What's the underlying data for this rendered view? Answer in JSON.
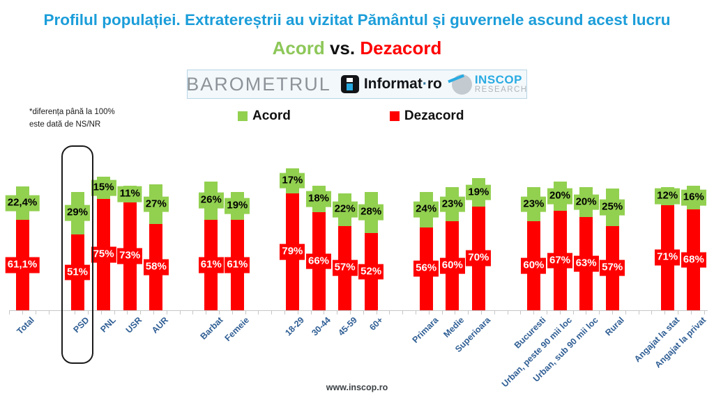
{
  "title": "Profilul populației. Extratereștrii au vizitat Pământul și guvernele ascund acest lucru",
  "subtitle": {
    "acord": "Acord",
    "vs": " vs. ",
    "dezacord": "Dezacord"
  },
  "logo_bar": {
    "barometrul": "BAROMETRUL",
    "informat_name": "Informat",
    "informat_sep": "·",
    "informat_tld": "ro",
    "inscop": "INSCOP",
    "research": "RESEARCH"
  },
  "footnote": {
    "line1": "*diferența până la 100%",
    "line2": "este dată de NS/NR"
  },
  "legend": [
    {
      "label": "Acord",
      "color": "#92D050"
    },
    {
      "label": "Dezacord",
      "color": "#FF0000"
    }
  ],
  "footer_url": "www.inscop.ro",
  "colors": {
    "title_blue": "#1B9DD9",
    "acord_green": "#92D050",
    "dezacord_red": "#FF0000",
    "axis_label_blue": "#2F5E94",
    "axis_gray": "#c6c6c6"
  },
  "chart_data": {
    "type": "bar",
    "stacked": true,
    "series_names": [
      "Acord",
      "Dezacord"
    ],
    "ylim": [
      0,
      100
    ],
    "legend_position": "top",
    "highlighted_category": "PSD",
    "groups": [
      {
        "bars": [
          {
            "category": "Total",
            "acord": 22.4,
            "acord_label": "22,4%",
            "dezacord": 61.1,
            "dezacord_label": "61,1%"
          }
        ]
      },
      {
        "bars": [
          {
            "category": "PSD",
            "acord": 29,
            "acord_label": "29%",
            "dezacord": 51,
            "dezacord_label": "51%"
          },
          {
            "category": "PNL",
            "acord": 15,
            "acord_label": "15%",
            "dezacord": 75,
            "dezacord_label": "75%"
          },
          {
            "category": "USR",
            "acord": 11,
            "acord_label": "11%",
            "dezacord": 73,
            "dezacord_label": "73%"
          },
          {
            "category": "AUR",
            "acord": 27,
            "acord_label": "27%",
            "dezacord": 58,
            "dezacord_label": "58%"
          }
        ]
      },
      {
        "bars": [
          {
            "category": "Barbat",
            "acord": 26,
            "acord_label": "26%",
            "dezacord": 61,
            "dezacord_label": "61%"
          },
          {
            "category": "Femeie",
            "acord": 19,
            "acord_label": "19%",
            "dezacord": 61,
            "dezacord_label": "61%"
          }
        ]
      },
      {
        "bars": [
          {
            "category": "18-29",
            "acord": 17,
            "acord_label": "17%",
            "dezacord": 79,
            "dezacord_label": "79%"
          },
          {
            "category": "30-44",
            "acord": 18,
            "acord_label": "18%",
            "dezacord": 66,
            "dezacord_label": "66%"
          },
          {
            "category": "45-59",
            "acord": 22,
            "acord_label": "22%",
            "dezacord": 57,
            "dezacord_label": "57%"
          },
          {
            "category": "60+",
            "acord": 28,
            "acord_label": "28%",
            "dezacord": 52,
            "dezacord_label": "52%"
          }
        ]
      },
      {
        "bars": [
          {
            "category": "Primara",
            "acord": 24,
            "acord_label": "24%",
            "dezacord": 56,
            "dezacord_label": "56%"
          },
          {
            "category": "Medie",
            "acord": 23,
            "acord_label": "23%",
            "dezacord": 60,
            "dezacord_label": "60%"
          },
          {
            "category": "Superioara",
            "acord": 19,
            "acord_label": "19%",
            "dezacord": 70,
            "dezacord_label": "70%"
          }
        ]
      },
      {
        "bars": [
          {
            "category": "Bucuresti",
            "acord": 23,
            "acord_label": "23%",
            "dezacord": 60,
            "dezacord_label": "60%"
          },
          {
            "category": "Urban, peste 90 mii loc",
            "acord": 20,
            "acord_label": "20%",
            "dezacord": 67,
            "dezacord_label": "67%"
          },
          {
            "category": "Urban, sub 90 mii loc",
            "acord": 20,
            "acord_label": "20%",
            "dezacord": 63,
            "dezacord_label": "63%"
          },
          {
            "category": "Rural",
            "acord": 25,
            "acord_label": "25%",
            "dezacord": 57,
            "dezacord_label": "57%"
          }
        ]
      },
      {
        "bars": [
          {
            "category": "Angajat la stat",
            "acord": 12,
            "acord_label": "12%",
            "dezacord": 71,
            "dezacord_label": "71%"
          },
          {
            "category": "Angajat la privat",
            "acord": 16,
            "acord_label": "16%",
            "dezacord": 68,
            "dezacord_label": "68%"
          }
        ]
      }
    ]
  }
}
